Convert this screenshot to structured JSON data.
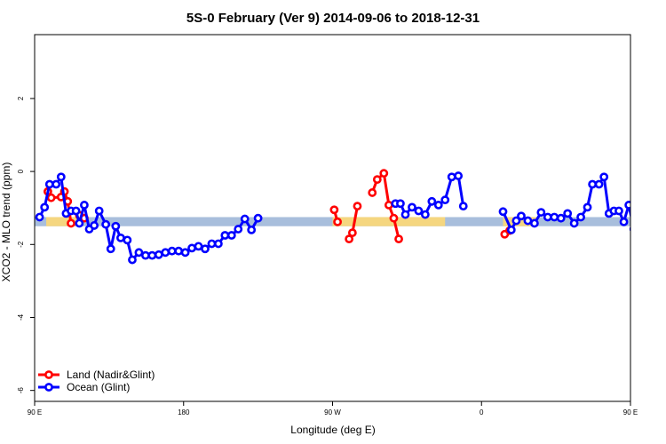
{
  "chart_data": {
    "type": "line",
    "title": "5S-0 February (Ver 9)   2014-09-06 to 2018-12-31",
    "xlabel": "Longitude (deg E)",
    "ylabel": "XCO2 - MLO trend (ppm)",
    "xlim": [
      90,
      450
    ],
    "ylim": [
      -6.3,
      3.75
    ],
    "xticks": [
      {
        "value": 90,
        "label": "90 E"
      },
      {
        "value": 180,
        "label": "180"
      },
      {
        "value": 270,
        "label": "90 W"
      },
      {
        "value": 360,
        "label": "0"
      },
      {
        "value": 450,
        "label": "90 E"
      },
      {
        "value": 540,
        "label": "180"
      }
    ],
    "yticks": [
      {
        "value": 2,
        "label": "2"
      },
      {
        "value": 0,
        "label": "0"
      },
      {
        "value": -2,
        "label": "-2"
      },
      {
        "value": -4,
        "label": "-4"
      },
      {
        "value": -6,
        "label": "-6"
      }
    ],
    "grid": false,
    "legend_position": "bottom-left",
    "band": {
      "ymin": -1.5,
      "ymax": -1.25,
      "ocean_color": "#A8BEDC",
      "land_color": "#F5D67F",
      "land_ranges": [
        [
          97,
          117
        ],
        [
          270,
          338
        ],
        [
          373,
          394
        ],
        [
          454,
          476
        ]
      ]
    },
    "series": [
      {
        "name": "Land (Nadir&Glint)",
        "color": "#FF0000",
        "segments": [
          [
            [
              98,
              -0.55
            ],
            [
              100,
              -0.72
            ],
            [
              106,
              -0.7
            ],
            [
              108,
              -0.55
            ],
            [
              110,
              -0.82
            ],
            [
              112,
              -1.42
            ]
          ],
          [
            [
              117,
              -1.2
            ],
            [
              120,
              -1.28
            ]
          ],
          [
            [
              271,
              -1.05
            ],
            [
              273,
              -1.38
            ]
          ],
          [
            [
              280,
              -1.85
            ],
            [
              282,
              -1.68
            ],
            [
              285,
              -0.95
            ]
          ],
          [
            [
              294,
              -0.58
            ],
            [
              297,
              -0.22
            ],
            [
              301,
              -0.05
            ],
            [
              304,
              -0.92
            ],
            [
              307,
              -1.28
            ],
            [
              310,
              -1.85
            ]
          ],
          [
            [
              374,
              -1.72
            ],
            [
              377,
              -1.62
            ]
          ],
          [
            [
              460,
              -0.55
            ],
            [
              462,
              -0.72
            ],
            [
              468,
              -0.7
            ],
            [
              470,
              -0.55
            ],
            [
              472,
              -0.82
            ],
            [
              474,
              -1.42
            ]
          ],
          [
            [
              479,
              -1.2
            ],
            [
              482,
              -1.28
            ]
          ]
        ]
      },
      {
        "name": "Ocean (Glint)",
        "color": "#0000FF",
        "segments": [
          [
            [
              93,
              -1.25
            ],
            [
              96,
              -0.98
            ],
            [
              99,
              -0.35
            ],
            [
              103,
              -0.35
            ],
            [
              106,
              -0.15
            ],
            [
              109,
              -1.15
            ],
            [
              112,
              -1.08
            ],
            [
              115,
              -1.08
            ],
            [
              117,
              -1.42
            ],
            [
              120,
              -0.92
            ],
            [
              123,
              -1.58
            ],
            [
              126,
              -1.48
            ],
            [
              129,
              -1.08
            ],
            [
              133,
              -1.45
            ],
            [
              136,
              -2.12
            ],
            [
              139,
              -1.5
            ],
            [
              142,
              -1.82
            ],
            [
              146,
              -1.88
            ],
            [
              149,
              -2.42
            ],
            [
              153,
              -2.22
            ],
            [
              157,
              -2.3
            ],
            [
              161,
              -2.3
            ],
            [
              165,
              -2.28
            ],
            [
              169,
              -2.22
            ],
            [
              173,
              -2.18
            ],
            [
              177,
              -2.18
            ],
            [
              181,
              -2.22
            ],
            [
              185,
              -2.1
            ],
            [
              189,
              -2.05
            ],
            [
              193,
              -2.12
            ],
            [
              197,
              -1.98
            ],
            [
              201,
              -1.98
            ],
            [
              205,
              -1.75
            ],
            [
              209,
              -1.75
            ],
            [
              213,
              -1.58
            ],
            [
              217,
              -1.3
            ],
            [
              221,
              -1.6
            ],
            [
              225,
              -1.28
            ]
          ],
          [
            [
              308,
              -0.88
            ],
            [
              311,
              -0.88
            ],
            [
              314,
              -1.18
            ],
            [
              318,
              -0.98
            ],
            [
              322,
              -1.08
            ],
            [
              326,
              -1.18
            ],
            [
              330,
              -0.82
            ],
            [
              334,
              -0.92
            ],
            [
              338,
              -0.78
            ],
            [
              342,
              -0.15
            ],
            [
              346,
              -0.12
            ],
            [
              349,
              -0.95
            ]
          ],
          [
            [
              373,
              -1.1
            ],
            [
              378,
              -1.6
            ],
            [
              381,
              -1.35
            ],
            [
              384,
              -1.22
            ],
            [
              388,
              -1.35
            ],
            [
              392,
              -1.42
            ],
            [
              396,
              -1.12
            ],
            [
              400,
              -1.25
            ],
            [
              404,
              -1.25
            ],
            [
              408,
              -1.28
            ],
            [
              412,
              -1.15
            ],
            [
              416,
              -1.42
            ],
            [
              420,
              -1.25
            ],
            [
              424,
              -0.98
            ],
            [
              427,
              -0.35
            ],
            [
              431,
              -0.35
            ],
            [
              434,
              -0.15
            ],
            [
              437,
              -1.15
            ],
            [
              440,
              -1.08
            ],
            [
              443,
              -1.08
            ],
            [
              446,
              -1.38
            ],
            [
              449,
              -0.92
            ],
            [
              452,
              -1.58
            ],
            [
              455,
              -1.48
            ],
            [
              458,
              -1.08
            ],
            [
              462,
              -1.45
            ],
            [
              465,
              -2.12
            ],
            [
              468,
              -1.5
            ],
            [
              471,
              -1.82
            ],
            [
              474,
              -1.88
            ]
          ]
        ]
      }
    ]
  }
}
